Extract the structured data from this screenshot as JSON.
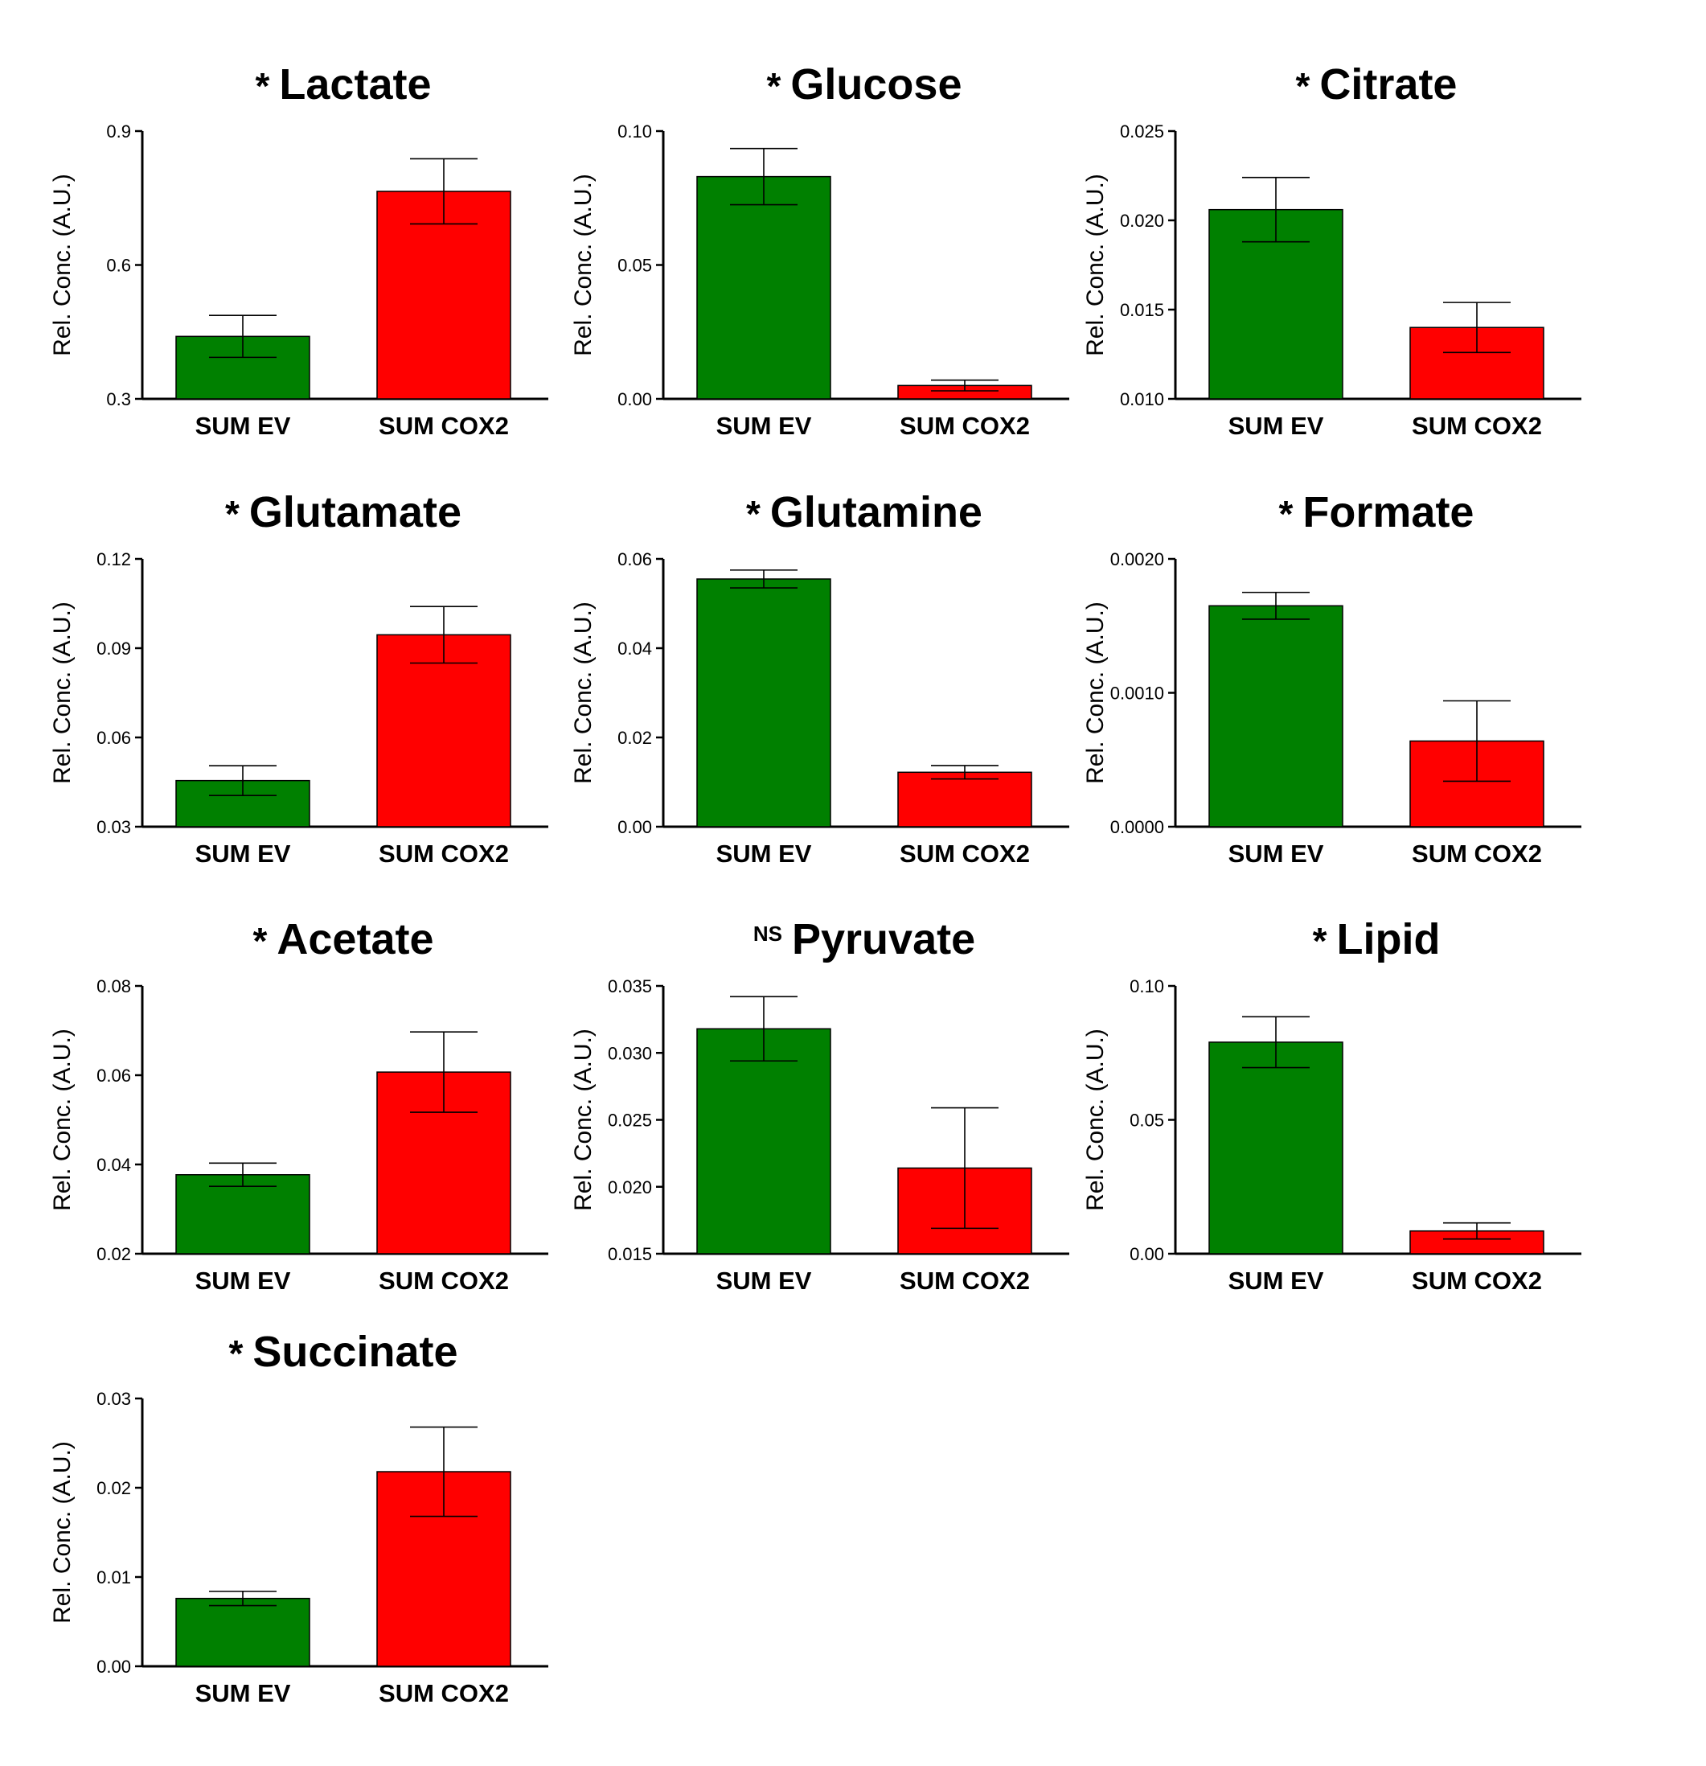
{
  "chart_data": [
    {
      "type": "bar",
      "title": "Lactate",
      "significance": "*",
      "ylabel": "Rel. Conc. (A.U.)",
      "categories": [
        "SUM EV",
        "SUM COX2"
      ],
      "values": [
        0.44,
        0.765
      ],
      "errors": [
        0.047,
        0.073
      ],
      "ylim": [
        0.3,
        0.9
      ],
      "yticks": [
        0.3,
        0.6,
        0.9
      ],
      "ytick_labels": [
        "0.3",
        "0.6",
        "0.9"
      ],
      "colors": [
        "#008000",
        "#ff0000"
      ]
    },
    {
      "type": "bar",
      "title": "Glucose",
      "significance": "*",
      "ylabel": "Rel. Conc. (A.U.)",
      "categories": [
        "SUM EV",
        "SUM COX2"
      ],
      "values": [
        0.083,
        0.005
      ],
      "errors": [
        0.0105,
        0.002
      ],
      "ylim": [
        0.0,
        0.1
      ],
      "yticks": [
        0.0,
        0.05,
        0.1
      ],
      "ytick_labels": [
        "0.00",
        "0.05",
        "0.10"
      ],
      "colors": [
        "#008000",
        "#ff0000"
      ]
    },
    {
      "type": "bar",
      "title": "Citrate",
      "significance": "*",
      "ylabel": "Rel. Conc. (A.U.)",
      "categories": [
        "SUM EV",
        "SUM COX2"
      ],
      "values": [
        0.0206,
        0.014
      ],
      "errors": [
        0.0018,
        0.0014
      ],
      "ylim": [
        0.01,
        0.025
      ],
      "yticks": [
        0.01,
        0.015,
        0.02,
        0.025
      ],
      "ytick_labels": [
        "0.010",
        "0.015",
        "0.020",
        "0.025"
      ],
      "colors": [
        "#008000",
        "#ff0000"
      ]
    },
    {
      "type": "bar",
      "title": "Glutamate",
      "significance": "*",
      "ylabel": "Rel. Conc. (A.U.)",
      "categories": [
        "SUM EV",
        "SUM COX2"
      ],
      "values": [
        0.0455,
        0.0945
      ],
      "errors": [
        0.005,
        0.0095
      ],
      "ylim": [
        0.03,
        0.12
      ],
      "yticks": [
        0.03,
        0.06,
        0.09,
        0.12
      ],
      "ytick_labels": [
        "0.03",
        "0.06",
        "0.09",
        "0.12"
      ],
      "colors": [
        "#008000",
        "#ff0000"
      ]
    },
    {
      "type": "bar",
      "title": "Glutamine",
      "significance": "*",
      "ylabel": "Rel. Conc. (A.U.)",
      "categories": [
        "SUM EV",
        "SUM COX2"
      ],
      "values": [
        0.0555,
        0.0122
      ],
      "errors": [
        0.002,
        0.0015
      ],
      "ylim": [
        0.0,
        0.06
      ],
      "yticks": [
        0.0,
        0.02,
        0.04,
        0.06
      ],
      "ytick_labels": [
        "0.00",
        "0.02",
        "0.04",
        "0.06"
      ],
      "colors": [
        "#008000",
        "#ff0000"
      ]
    },
    {
      "type": "bar",
      "title": "Formate",
      "significance": "*",
      "ylabel": "Rel. Conc. (A.U.)",
      "categories": [
        "SUM EV",
        "SUM COX2"
      ],
      "values": [
        0.00165,
        0.00064
      ],
      "errors": [
        0.0001,
        0.0003
      ],
      "ylim": [
        0.0,
        0.002
      ],
      "yticks": [
        0.0,
        0.001,
        0.002
      ],
      "ytick_labels": [
        "0.0000",
        "0.0010",
        "0.0020"
      ],
      "colors": [
        "#008000",
        "#ff0000"
      ]
    },
    {
      "type": "bar",
      "title": "Acetate",
      "significance": "*",
      "ylabel": "Rel. Conc. (A.U.)",
      "categories": [
        "SUM EV",
        "SUM COX2"
      ],
      "values": [
        0.0377,
        0.0607
      ],
      "errors": [
        0.0026,
        0.009
      ],
      "ylim": [
        0.02,
        0.08
      ],
      "yticks": [
        0.02,
        0.04,
        0.06,
        0.08
      ],
      "ytick_labels": [
        "0.02",
        "0.04",
        "0.06",
        "0.08"
      ],
      "colors": [
        "#008000",
        "#ff0000"
      ]
    },
    {
      "type": "bar",
      "title": "Pyruvate",
      "significance": "NS",
      "ylabel": "Rel. Conc. (A.U.)",
      "categories": [
        "SUM EV",
        "SUM COX2"
      ],
      "values": [
        0.0318,
        0.0214
      ],
      "errors": [
        0.0024,
        0.0045
      ],
      "ylim": [
        0.015,
        0.035
      ],
      "yticks": [
        0.015,
        0.02,
        0.025,
        0.03,
        0.035
      ],
      "ytick_labels": [
        "0.015",
        "0.020",
        "0.025",
        "0.030",
        "0.035"
      ],
      "colors": [
        "#008000",
        "#ff0000"
      ]
    },
    {
      "type": "bar",
      "title": "Lipid",
      "significance": "*",
      "ylabel": "Rel. Conc. (A.U.)",
      "categories": [
        "SUM EV",
        "SUM COX2"
      ],
      "values": [
        0.079,
        0.0085
      ],
      "errors": [
        0.0095,
        0.003
      ],
      "ylim": [
        0.0,
        0.1
      ],
      "yticks": [
        0.0,
        0.05,
        0.1
      ],
      "ytick_labels": [
        "0.00",
        "0.05",
        "0.10"
      ],
      "colors": [
        "#008000",
        "#ff0000"
      ]
    },
    {
      "type": "bar",
      "title": "Succinate",
      "significance": "*",
      "ylabel": "Rel. Conc. (A.U.)",
      "categories": [
        "SUM EV",
        "SUM COX2"
      ],
      "values": [
        0.0076,
        0.0218
      ],
      "errors": [
        0.0008,
        0.005
      ],
      "ylim": [
        0.0,
        0.03
      ],
      "yticks": [
        0.0,
        0.01,
        0.02,
        0.03
      ],
      "ytick_labels": [
        "0.00",
        "0.01",
        "0.02",
        "0.03"
      ],
      "colors": [
        "#008000",
        "#ff0000"
      ]
    }
  ]
}
